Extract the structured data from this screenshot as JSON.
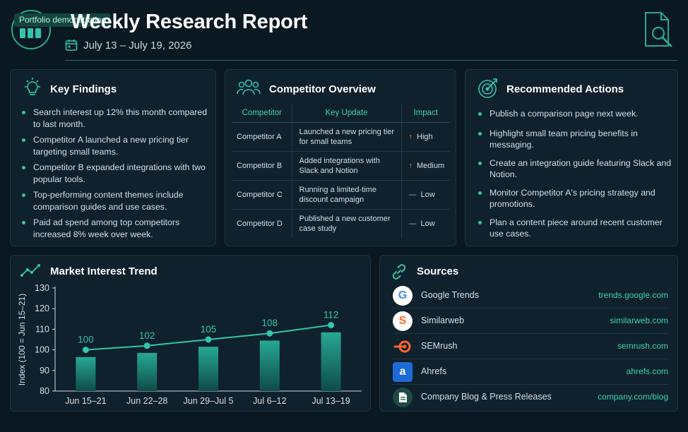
{
  "header": {
    "badge": "Portfolio demonstration",
    "title": "Weekly Research Report",
    "date_range": "July 13 – July 19, 2026"
  },
  "key_findings": {
    "title": "Key Findings",
    "items": [
      "Search interest up 12% this month compared to last month.",
      "Competitor A launched a new pricing tier targeting small teams.",
      "Competitor B expanded integrations with two popular tools.",
      "Top-performing content themes include comparison guides and use cases.",
      "Paid ad spend among top competitors increased 8% week over week."
    ]
  },
  "competitor_overview": {
    "title": "Competitor Overview",
    "headers": [
      "Competitor",
      "Key Update",
      "Impact"
    ],
    "rows": [
      {
        "name": "Competitor A",
        "update": "Launched a new pricing tier for small teams",
        "impact": "High",
        "trend": "up"
      },
      {
        "name": "Competitor B",
        "update": "Added integrations with Slack and Notion",
        "impact": "Medium",
        "trend": "up"
      },
      {
        "name": "Competitor C",
        "update": "Running a limited-time discount campaign",
        "impact": "Low",
        "trend": "flat"
      },
      {
        "name": "Competitor D",
        "update": "Published a new customer case study",
        "impact": "Low",
        "trend": "flat"
      }
    ]
  },
  "recommended_actions": {
    "title": "Recommended Actions",
    "items": [
      "Publish a comparison page next week.",
      "Highlight small team pricing benefits in messaging.",
      "Create an integration guide featuring Slack and Notion.",
      "Monitor Competitor A's pricing strategy and promotions.",
      "Plan a content piece around recent customer use cases."
    ]
  },
  "market_trend": {
    "title": "Market Interest Trend",
    "chart_data": {
      "type": "bar",
      "categories": [
        "Jun 15–21",
        "Jun 22–28",
        "Jun 29–Jul 5",
        "Jul 6–12",
        "Jul 13–19"
      ],
      "values": [
        100,
        102,
        105,
        108,
        112
      ],
      "ylabel": "Index (100 = Jun 15–21)",
      "ylim": [
        80,
        130
      ],
      "yticks": [
        80,
        90,
        100,
        110,
        120,
        130
      ],
      "overlay_line": true,
      "grid": false
    }
  },
  "sources": {
    "title": "Sources",
    "items": [
      {
        "name": "Google Trends",
        "url": "trends.google.com",
        "icon": "google-icon",
        "glyph": "G"
      },
      {
        "name": "Similarweb",
        "url": "similarweb.com",
        "icon": "similarweb-icon",
        "glyph": "S"
      },
      {
        "name": "SEMrush",
        "url": "semrush.com",
        "icon": "semrush-icon",
        "glyph": ""
      },
      {
        "name": "Ahrefs",
        "url": "ahrefs.com",
        "icon": "ahrefs-icon",
        "glyph": "a"
      },
      {
        "name": "Company Blog & Press Releases",
        "url": "company.com/blog",
        "icon": "document-icon",
        "glyph": ""
      }
    ]
  },
  "colors": {
    "accent": "#34c4ae",
    "bar_top": "#27a896",
    "bar_bottom": "#0e4b47",
    "impact_arrow": "#f08a2a",
    "background": "#0a1822"
  }
}
